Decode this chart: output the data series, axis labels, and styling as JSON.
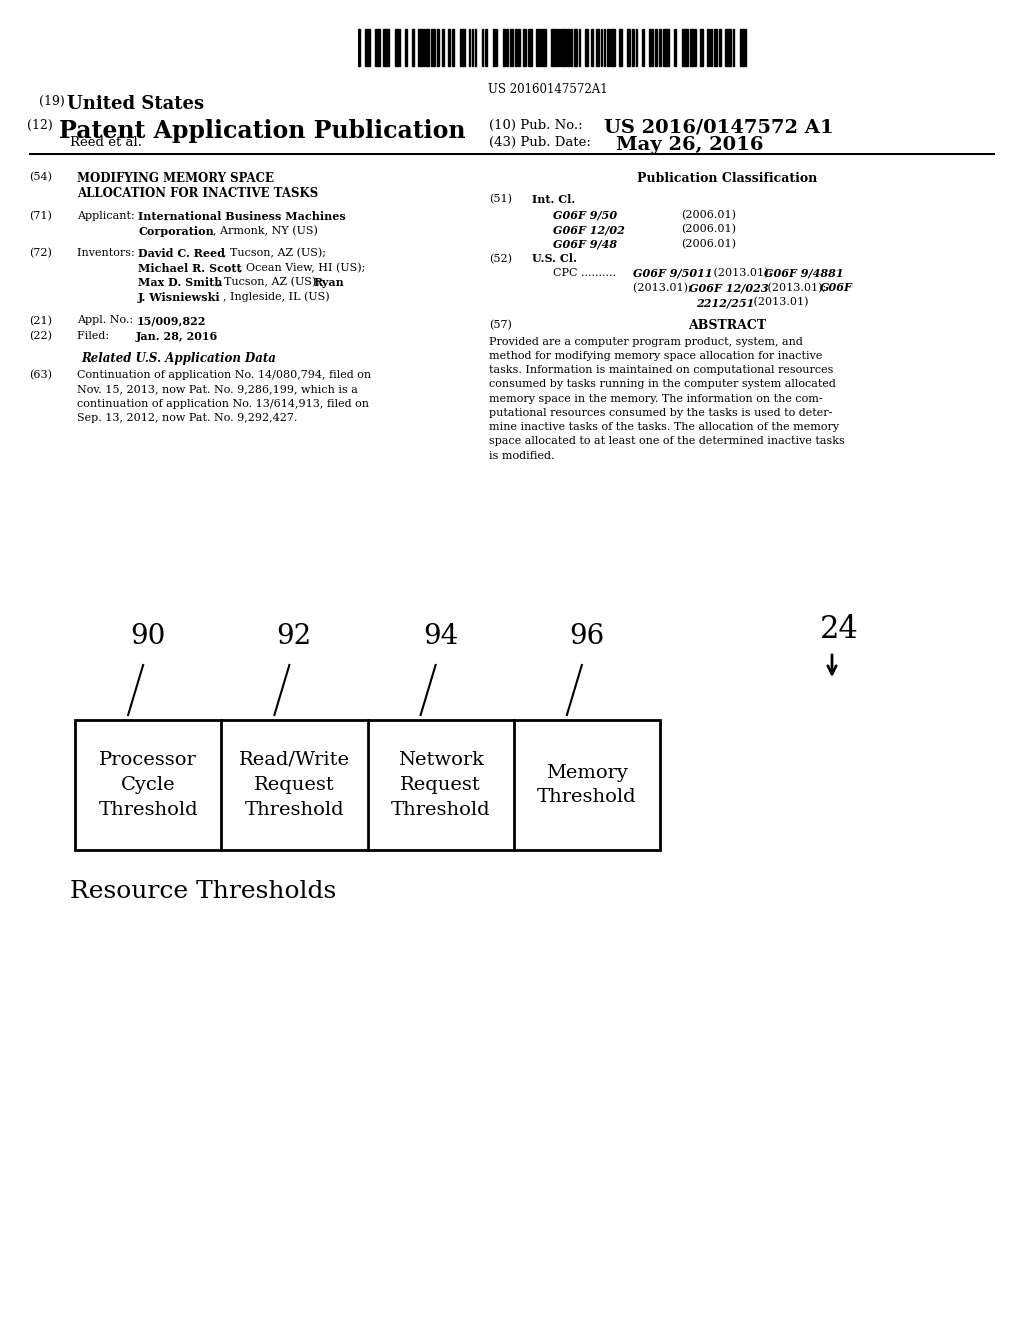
{
  "bg_color": "#ffffff",
  "barcode_text": "US 20160147572A1",
  "title_19": "(19) United States",
  "title_12": "(12) Patent Application Publication",
  "title_10_label": "(10) Pub. No.:",
  "title_10_value": "US 2016/0147572 A1",
  "author": "Reed et al.",
  "title_43_label": "(43) Pub. Date:",
  "title_43_value": "May 26, 2016",
  "pub_class_title": "Publication Classification",
  "int_cl_entries": [
    {
      "code": "G06F 9/50",
      "date": "(2006.01)"
    },
    {
      "code": "G06F 12/02",
      "date": "(2006.01)"
    },
    {
      "code": "G06F 9/48",
      "date": "(2006.01)"
    }
  ],
  "abstract_text": "Provided are a computer program product, system, and method for modifying memory space allocation for inactive tasks. Information is maintained on computational resources consumed by tasks running in the computer system allocated memory space in the memory. The information on the com-putational resources consumed by the tasks is used to determine inactive tasks of the tasks. The allocation of the memory space allocated to at least one of the determined inactive tasks is modified.",
  "box_labels": [
    "Processor\nCycle\nThreshold",
    "Read/Write\nRequest\nThreshold",
    "Network\nRequest\nThreshold",
    "Memory\nThreshold"
  ],
  "box_refs": [
    "90",
    "92",
    "94",
    "96"
  ],
  "caption": "Resource Thresholds",
  "diagram_label": "24"
}
